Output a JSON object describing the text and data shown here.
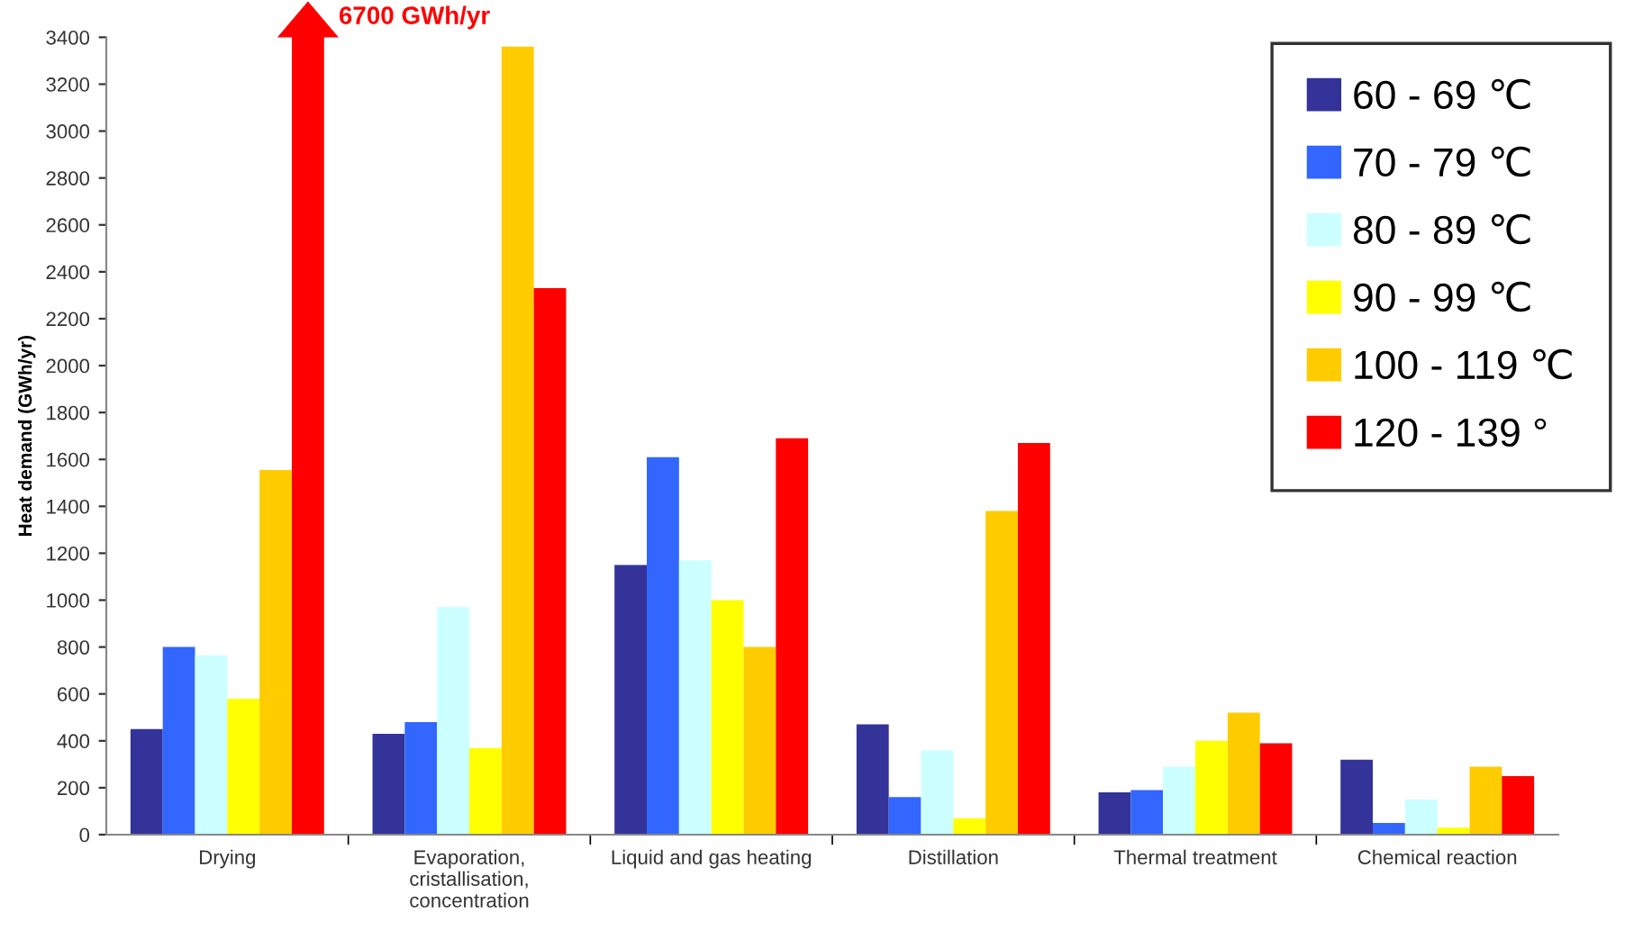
{
  "chart_data": {
    "type": "bar",
    "ylabel": "Heat demand (GWh/yr)",
    "categories": [
      "Drying",
      "Evaporation,\ncristallisation,\nconcentration",
      "Liquid and gas heating",
      "Distillation",
      "Thermal treatment",
      "Chemical reaction"
    ],
    "series": [
      {
        "name": "60 - 69 ℃",
        "color": "#333399",
        "values": [
          450,
          430,
          1150,
          470,
          180,
          320
        ]
      },
      {
        "name": "70 - 79 ℃",
        "color": "#3366ff",
        "values": [
          800,
          480,
          1610,
          160,
          190,
          50
        ]
      },
      {
        "name": "80 - 89 ℃",
        "color": "#ccffff",
        "values": [
          765,
          970,
          1170,
          360,
          290,
          150
        ]
      },
      {
        "name": "90 - 99 ℃",
        "color": "#ffff00",
        "values": [
          580,
          370,
          1000,
          70,
          400,
          30
        ]
      },
      {
        "name": "100 - 119 ℃",
        "color": "#ffcc00",
        "values": [
          1555,
          3360,
          800,
          1380,
          520,
          290
        ]
      },
      {
        "name": "120 - 139 °",
        "color": "#ff0000",
        "values": [
          null,
          2330,
          1690,
          1670,
          390,
          250
        ]
      }
    ],
    "ylim": [
      0,
      3400
    ],
    "yticks": [
      0,
      200,
      400,
      600,
      800,
      1000,
      1200,
      1400,
      1600,
      1800,
      2000,
      2200,
      2400,
      2600,
      2800,
      3000,
      3200,
      3400
    ],
    "annotations": [
      "6700 GWh/yr"
    ],
    "legend": "top right",
    "grid": false
  }
}
